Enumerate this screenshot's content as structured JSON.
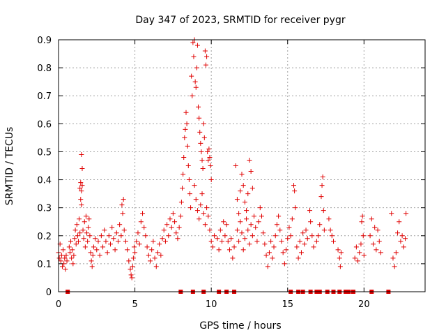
{
  "chart_data": {
    "type": "scatter",
    "title": "Day 347 of 2023, SRMTID for receiver pygr",
    "xlabel": "GPS time / hours",
    "ylabel": "SRMTID / TECUs",
    "xlim": [
      0,
      24
    ],
    "ylim": [
      0,
      0.9
    ],
    "x_ticks": [
      "0",
      "5",
      "10",
      "15",
      "20"
    ],
    "x_tick_values": [
      0,
      5,
      10,
      15,
      20
    ],
    "y_ticks": [
      "0",
      "0.1",
      "0.2",
      "0.3",
      "0.4",
      "0.5",
      "0.6",
      "0.7",
      "0.8",
      "0.9"
    ],
    "y_tick_values": [
      0,
      0.1,
      0.2,
      0.3,
      0.4,
      0.5,
      0.6,
      0.7,
      0.8,
      0.9
    ],
    "grid": true,
    "marker": "+",
    "color": "#e00000",
    "series": [
      {
        "name": "SRMTID",
        "points": [
          [
            0.0,
            0.14
          ],
          [
            0.05,
            0.12
          ],
          [
            0.1,
            0.17
          ],
          [
            0.15,
            0.11
          ],
          [
            0.2,
            0.13
          ],
          [
            0.25,
            0.09
          ],
          [
            0.3,
            0.15
          ],
          [
            0.35,
            0.1
          ],
          [
            0.4,
            0.12
          ],
          [
            0.45,
            0.08
          ],
          [
            0.5,
            0.13
          ],
          [
            0.55,
            0.11
          ],
          [
            0.7,
            0.16
          ],
          [
            0.75,
            0.14
          ],
          [
            0.8,
            0.18
          ],
          [
            0.85,
            0.12
          ],
          [
            0.9,
            0.15
          ],
          [
            0.95,
            0.1
          ],
          [
            1.0,
            0.13
          ],
          [
            1.05,
            0.19
          ],
          [
            1.1,
            0.22
          ],
          [
            1.15,
            0.17
          ],
          [
            1.2,
            0.24
          ],
          [
            1.25,
            0.2
          ],
          [
            1.3,
            0.18
          ],
          [
            1.35,
            0.26
          ],
          [
            1.4,
            0.21
          ],
          [
            1.4,
            0.37
          ],
          [
            1.45,
            0.39
          ],
          [
            1.5,
            0.36
          ],
          [
            1.55,
            0.38
          ],
          [
            1.45,
            0.33
          ],
          [
            1.5,
            0.49
          ],
          [
            1.55,
            0.44
          ],
          [
            1.5,
            0.31
          ],
          [
            1.6,
            0.22
          ],
          [
            1.65,
            0.19
          ],
          [
            1.7,
            0.25
          ],
          [
            1.75,
            0.16
          ],
          [
            1.8,
            0.27
          ],
          [
            1.85,
            0.21
          ],
          [
            1.9,
            0.18
          ],
          [
            1.95,
            0.23
          ],
          [
            2.0,
            0.26
          ],
          [
            2.05,
            0.2
          ],
          [
            2.1,
            0.14
          ],
          [
            2.15,
            0.11
          ],
          [
            2.2,
            0.09
          ],
          [
            2.25,
            0.13
          ],
          [
            2.3,
            0.16
          ],
          [
            2.4,
            0.19
          ],
          [
            2.5,
            0.15
          ],
          [
            2.6,
            0.18
          ],
          [
            2.7,
            0.13
          ],
          [
            2.8,
            0.2
          ],
          [
            2.9,
            0.16
          ],
          [
            3.0,
            0.22
          ],
          [
            3.1,
            0.18
          ],
          [
            3.2,
            0.14
          ],
          [
            3.3,
            0.2
          ],
          [
            3.4,
            0.17
          ],
          [
            3.5,
            0.23
          ],
          [
            3.6,
            0.19
          ],
          [
            3.7,
            0.15
          ],
          [
            3.8,
            0.21
          ],
          [
            3.9,
            0.18
          ],
          [
            4.0,
            0.24
          ],
          [
            4.1,
            0.2
          ],
          [
            4.15,
            0.31
          ],
          [
            4.2,
            0.28
          ],
          [
            4.25,
            0.33
          ],
          [
            4.3,
            0.22
          ],
          [
            4.4,
            0.18
          ],
          [
            4.5,
            0.15
          ],
          [
            4.6,
            0.11
          ],
          [
            4.7,
            0.08
          ],
          [
            4.75,
            0.06
          ],
          [
            4.8,
            0.05
          ],
          [
            4.85,
            0.09
          ],
          [
            4.9,
            0.12
          ],
          [
            4.95,
            0.16
          ],
          [
            5.0,
            0.14
          ],
          [
            5.1,
            0.18
          ],
          [
            5.2,
            0.21
          ],
          [
            5.3,
            0.17
          ],
          [
            5.4,
            0.25
          ],
          [
            5.5,
            0.28
          ],
          [
            5.6,
            0.23
          ],
          [
            5.7,
            0.2
          ],
          [
            5.8,
            0.16
          ],
          [
            5.9,
            0.13
          ],
          [
            6.0,
            0.11
          ],
          [
            6.1,
            0.15
          ],
          [
            6.2,
            0.18
          ],
          [
            6.3,
            0.12
          ],
          [
            6.4,
            0.09
          ],
          [
            6.5,
            0.14
          ],
          [
            6.6,
            0.17
          ],
          [
            6.7,
            0.13
          ],
          [
            6.8,
            0.19
          ],
          [
            6.9,
            0.22
          ],
          [
            7.0,
            0.18
          ],
          [
            7.1,
            0.24
          ],
          [
            7.2,
            0.2
          ],
          [
            7.3,
            0.26
          ],
          [
            7.4,
            0.23
          ],
          [
            7.5,
            0.28
          ],
          [
            7.6,
            0.25
          ],
          [
            7.7,
            0.21
          ],
          [
            7.8,
            0.19
          ],
          [
            7.9,
            0.23
          ],
          [
            8.0,
            0.27
          ],
          [
            8.05,
            0.32
          ],
          [
            8.1,
            0.37
          ],
          [
            8.15,
            0.42
          ],
          [
            8.2,
            0.48
          ],
          [
            8.25,
            0.55
          ],
          [
            8.3,
            0.58
          ],
          [
            8.35,
            0.64
          ],
          [
            8.4,
            0.6
          ],
          [
            8.45,
            0.52
          ],
          [
            8.5,
            0.45
          ],
          [
            8.55,
            0.4
          ],
          [
            8.6,
            0.35
          ],
          [
            8.65,
            0.3
          ],
          [
            8.7,
            0.77
          ],
          [
            8.75,
            0.7
          ],
          [
            8.8,
            0.89
          ],
          [
            8.85,
            0.84
          ],
          [
            8.9,
            0.9
          ],
          [
            8.95,
            0.75
          ],
          [
            9.0,
            0.73
          ],
          [
            9.05,
            0.8
          ],
          [
            9.1,
            0.88
          ],
          [
            9.15,
            0.66
          ],
          [
            9.2,
            0.62
          ],
          [
            9.25,
            0.57
          ],
          [
            9.3,
            0.53
          ],
          [
            9.35,
            0.5
          ],
          [
            9.4,
            0.47
          ],
          [
            9.45,
            0.44
          ],
          [
            9.5,
            0.6
          ],
          [
            9.55,
            0.55
          ],
          [
            9.6,
            0.86
          ],
          [
            9.65,
            0.81
          ],
          [
            9.7,
            0.84
          ],
          [
            9.75,
            0.5
          ],
          [
            9.8,
            0.47
          ],
          [
            9.85,
            0.51
          ],
          [
            9.9,
            0.48
          ],
          [
            9.95,
            0.45
          ],
          [
            10.0,
            0.4
          ],
          [
            8.9,
            0.38
          ],
          [
            9.0,
            0.33
          ],
          [
            9.1,
            0.29
          ],
          [
            9.2,
            0.26
          ],
          [
            9.3,
            0.31
          ],
          [
            9.4,
            0.35
          ],
          [
            9.5,
            0.28
          ],
          [
            9.6,
            0.24
          ],
          [
            9.7,
            0.3
          ],
          [
            9.8,
            0.27
          ],
          [
            9.9,
            0.22
          ],
          [
            10.0,
            0.18
          ],
          [
            10.1,
            0.16
          ],
          [
            10.2,
            0.2
          ],
          [
            10.4,
            0.19
          ],
          [
            10.5,
            0.15
          ],
          [
            10.6,
            0.22
          ],
          [
            10.7,
            0.18
          ],
          [
            10.8,
            0.25
          ],
          [
            10.9,
            0.2
          ],
          [
            11.0,
            0.24
          ],
          [
            11.1,
            0.18
          ],
          [
            11.2,
            0.15
          ],
          [
            11.3,
            0.19
          ],
          [
            11.4,
            0.12
          ],
          [
            11.5,
            0.16
          ],
          [
            11.6,
            0.45
          ],
          [
            11.7,
            0.33
          ],
          [
            11.8,
            0.28
          ],
          [
            11.9,
            0.36
          ],
          [
            12.0,
            0.42
          ],
          [
            12.1,
            0.38
          ],
          [
            12.2,
            0.32
          ],
          [
            12.3,
            0.29
          ],
          [
            12.4,
            0.35
          ],
          [
            12.5,
            0.47
          ],
          [
            12.6,
            0.43
          ],
          [
            12.7,
            0.37
          ],
          [
            11.7,
            0.22
          ],
          [
            11.8,
            0.18
          ],
          [
            11.9,
            0.25
          ],
          [
            12.0,
            0.21
          ],
          [
            12.1,
            0.15
          ],
          [
            12.2,
            0.19
          ],
          [
            12.3,
            0.26
          ],
          [
            12.4,
            0.22
          ],
          [
            12.5,
            0.17
          ],
          [
            12.6,
            0.24
          ],
          [
            12.7,
            0.2
          ],
          [
            12.8,
            0.27
          ],
          [
            12.9,
            0.23
          ],
          [
            13.0,
            0.18
          ],
          [
            13.1,
            0.25
          ],
          [
            13.2,
            0.3
          ],
          [
            13.3,
            0.27
          ],
          [
            13.4,
            0.21
          ],
          [
            13.5,
            0.17
          ],
          [
            13.6,
            0.13
          ],
          [
            13.7,
            0.09
          ],
          [
            13.8,
            0.14
          ],
          [
            13.9,
            0.18
          ],
          [
            14.0,
            0.12
          ],
          [
            14.1,
            0.16
          ],
          [
            14.2,
            0.2
          ],
          [
            14.3,
            0.24
          ],
          [
            14.4,
            0.27
          ],
          [
            14.5,
            0.22
          ],
          [
            14.6,
            0.18
          ],
          [
            14.7,
            0.14
          ],
          [
            14.8,
            0.1
          ],
          [
            14.9,
            0.15
          ],
          [
            15.0,
            0.19
          ],
          [
            15.1,
            0.23
          ],
          [
            15.2,
            0.2
          ],
          [
            15.3,
            0.26
          ],
          [
            15.4,
            0.38
          ],
          [
            15.45,
            0.36
          ],
          [
            15.5,
            0.3
          ],
          [
            15.6,
            0.16
          ],
          [
            15.7,
            0.12
          ],
          [
            15.8,
            0.18
          ],
          [
            15.9,
            0.14
          ],
          [
            16.0,
            0.21
          ],
          [
            16.1,
            0.17
          ],
          [
            16.2,
            0.22
          ],
          [
            16.3,
            0.19
          ],
          [
            16.45,
            0.29
          ],
          [
            16.5,
            0.25
          ],
          [
            16.6,
            0.2
          ],
          [
            16.7,
            0.16
          ],
          [
            16.9,
            0.18
          ],
          [
            17.0,
            0.2
          ],
          [
            17.1,
            0.24
          ],
          [
            17.2,
            0.34
          ],
          [
            17.25,
            0.38
          ],
          [
            17.3,
            0.41
          ],
          [
            17.35,
            0.29
          ],
          [
            17.4,
            0.22
          ],
          [
            17.7,
            0.26
          ],
          [
            17.8,
            0.22
          ],
          [
            17.9,
            0.2
          ],
          [
            18.0,
            0.18
          ],
          [
            18.3,
            0.15
          ],
          [
            18.4,
            0.12
          ],
          [
            18.45,
            0.09
          ],
          [
            18.5,
            0.14
          ],
          [
            19.4,
            0.12
          ],
          [
            19.5,
            0.16
          ],
          [
            19.6,
            0.11
          ],
          [
            19.7,
            0.14
          ],
          [
            19.8,
            0.17
          ],
          [
            19.85,
            0.25
          ],
          [
            19.9,
            0.27
          ],
          [
            19.95,
            0.2
          ],
          [
            20.0,
            0.13
          ],
          [
            20.4,
            0.2
          ],
          [
            20.5,
            0.26
          ],
          [
            20.6,
            0.17
          ],
          [
            20.7,
            0.23
          ],
          [
            20.8,
            0.15
          ],
          [
            20.9,
            0.22
          ],
          [
            21.0,
            0.18
          ],
          [
            21.1,
            0.14
          ],
          [
            21.8,
            0.28
          ],
          [
            21.9,
            0.12
          ],
          [
            22.0,
            0.09
          ],
          [
            22.1,
            0.14
          ],
          [
            22.2,
            0.21
          ],
          [
            22.3,
            0.25
          ],
          [
            22.4,
            0.18
          ],
          [
            22.5,
            0.2
          ],
          [
            22.6,
            0.16
          ],
          [
            22.7,
            0.19
          ],
          [
            22.75,
            0.28
          ]
        ]
      }
    ],
    "zero_markers": [
      0.6,
      8.0,
      8.8,
      9.5,
      10.5,
      11.0,
      11.5,
      15.2,
      15.7,
      16.0,
      16.5,
      16.9,
      17.1,
      17.6,
      18.0,
      18.4,
      18.8,
      19.0,
      19.3,
      20.5,
      21.6
    ]
  }
}
